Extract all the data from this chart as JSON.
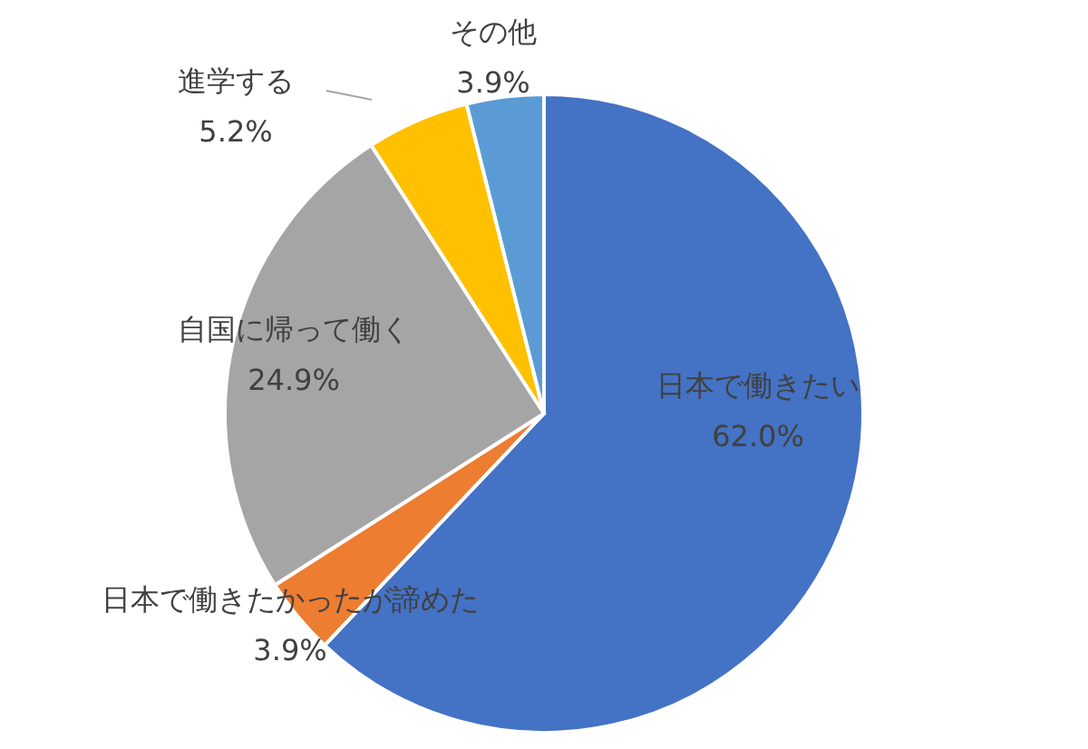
{
  "chart_data": {
    "type": "pie",
    "categories": [
      "日本で働きたい",
      "日本で働きたかったが諦めた",
      "自国に帰って働く",
      "進学する",
      "その他"
    ],
    "values": [
      62.0,
      3.9,
      24.9,
      5.2,
      3.9
    ],
    "value_labels": [
      "62.0%",
      "3.9%",
      "24.9%",
      "5.2%",
      "3.9%"
    ],
    "colors": [
      "#4472c4",
      "#ed7d31",
      "#a5a5a5",
      "#ffc000",
      "#5b9bd5"
    ]
  }
}
